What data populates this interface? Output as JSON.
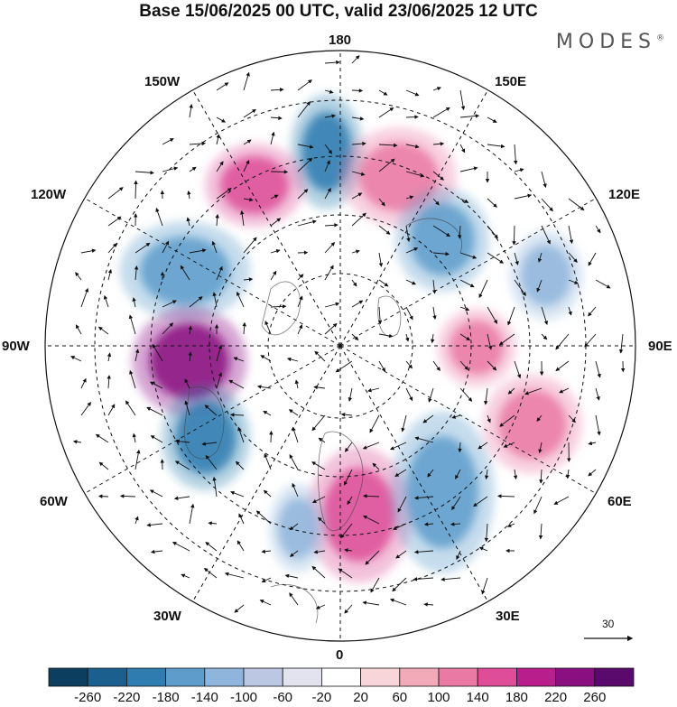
{
  "title": "Base 15/06/2025 00 UTC, valid 23/06/2025 12 UTC",
  "brand": "MODES",
  "brand_mark": "®",
  "longitude_labels": {
    "top": "180",
    "bottom": "0",
    "left": "90W",
    "right": "90E",
    "top_left": "150W",
    "top_right": "150E",
    "upper_left": "120W",
    "upper_right": "120E",
    "lower_left": "60W",
    "lower_right": "60E",
    "bottom_left": "30W",
    "bottom_right": "30E"
  },
  "reference_vector": {
    "value": "30"
  },
  "colorbar": {
    "labels": [
      "-260",
      "-220",
      "-180",
      "-140",
      "-100",
      "-60",
      "-20",
      "20",
      "60",
      "100",
      "140",
      "180",
      "220",
      "260"
    ],
    "colors": [
      "#0c3e60",
      "#1a5f8e",
      "#2f7db0",
      "#5d9ccb",
      "#90b5dc",
      "#bcc8e3",
      "#e3e3f0",
      "#ffffff",
      "#f7d5d8",
      "#f2aab8",
      "#ea79a3",
      "#dd4d98",
      "#b81f8c",
      "#8a0f80",
      "#5a0a6c"
    ]
  },
  "anomaly_centers": [
    {
      "name": "low-bering",
      "color": "#2f7db0"
    },
    {
      "name": "high-alaska",
      "color": "#dd4d98"
    },
    {
      "name": "high-east-siberia",
      "color": "#ea79a3"
    },
    {
      "name": "low-central-siberia",
      "color": "#5d9ccb"
    },
    {
      "name": "low-east-asia",
      "color": "#90b5dc"
    },
    {
      "name": "low-canada-west",
      "color": "#5d9ccb"
    },
    {
      "name": "high-hudson",
      "color": "#8a0f80"
    },
    {
      "name": "low-labrador",
      "color": "#2f7db0"
    },
    {
      "name": "high-scandinavia",
      "color": "#dd4d98"
    },
    {
      "name": "low-europe",
      "color": "#5d9ccb"
    },
    {
      "name": "high-urals",
      "color": "#ea79a3"
    },
    {
      "name": "high-central-asia",
      "color": "#ea79a3"
    },
    {
      "name": "low-atlantic",
      "color": "#90b5dc"
    }
  ]
}
